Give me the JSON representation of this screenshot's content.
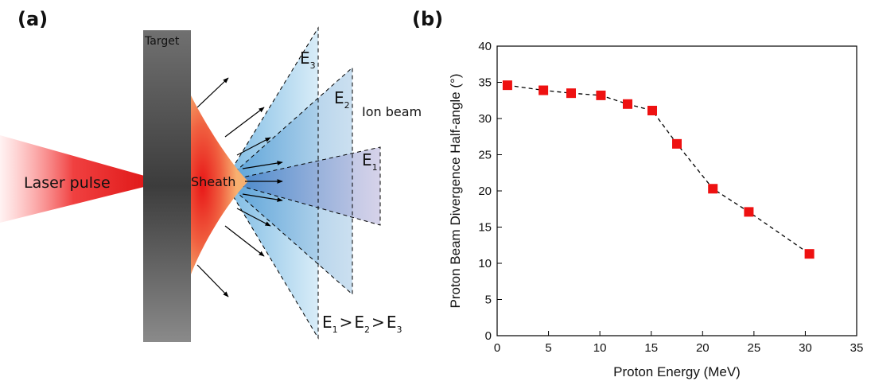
{
  "diagram": {
    "panel_label": "(a)",
    "target": "Target",
    "laser": "Laser pulse",
    "sheath": "Sheath",
    "ion_beam": "Ion beam",
    "beams": [
      {
        "base": "E",
        "sub": "3"
      },
      {
        "base": "E",
        "sub": "2"
      },
      {
        "base": "E",
        "sub": "1"
      }
    ],
    "relation": {
      "terms": [
        {
          "base": "E",
          "sub": "1"
        },
        {
          "base": "E",
          "sub": "2"
        },
        {
          "base": "E",
          "sub": "3"
        }
      ],
      "sign": ">"
    }
  },
  "chart_data": {
    "type": "line",
    "panel_label": "(b)",
    "x_label": "Proton Energy (MeV)",
    "y_label": "Proton Beam Divergence Half-angle (°)",
    "x": [
      1.0,
      4.5,
      7.2,
      10.1,
      12.7,
      15.1,
      17.5,
      21.0,
      24.5,
      30.4
    ],
    "series": [
      {
        "color": "#ee1111",
        "values": [
          34.6,
          33.9,
          33.5,
          33.2,
          32.0,
          31.1,
          26.5,
          20.3,
          17.1,
          11.3
        ]
      }
    ],
    "xlim": [
      0,
      35
    ],
    "xticks": [
      0,
      5,
      10,
      15,
      20,
      25,
      30,
      35
    ],
    "ylim": [
      0,
      40
    ],
    "yticks": [
      0,
      5,
      10,
      15,
      20,
      25,
      30,
      35,
      40
    ]
  }
}
